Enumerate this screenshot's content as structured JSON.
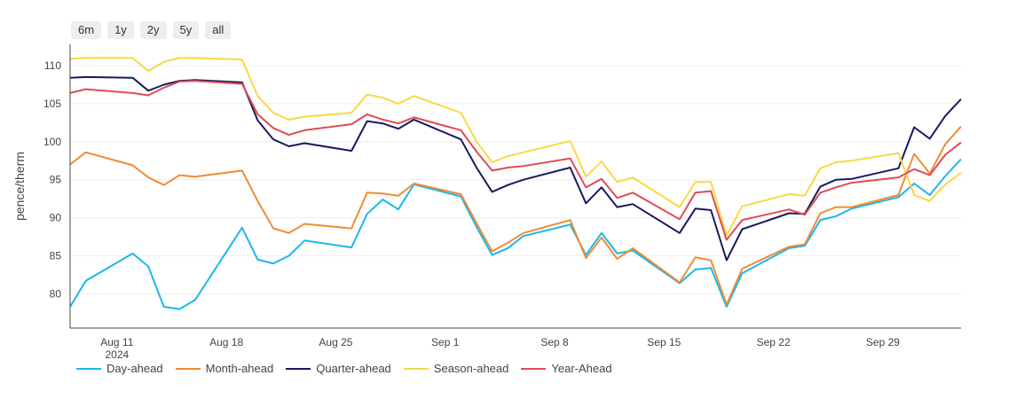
{
  "range_buttons": [
    "6m",
    "1y",
    "2y",
    "5y",
    "all"
  ],
  "chart_data": {
    "type": "line",
    "ylabel": "pence/therm",
    "xlabel": "",
    "ylim": [
      75.5,
      112.8
    ],
    "xlim": [
      "2024-08-08",
      "2024-10-04"
    ],
    "yticks": [
      80,
      85,
      90,
      95,
      100,
      105,
      110
    ],
    "xticks": [
      {
        "date": "2024-08-11",
        "label": "Aug 11",
        "sublabel": "2024"
      },
      {
        "date": "2024-08-18",
        "label": "Aug 18"
      },
      {
        "date": "2024-08-25",
        "label": "Aug 25"
      },
      {
        "date": "2024-09-01",
        "label": "Sep 1"
      },
      {
        "date": "2024-09-08",
        "label": "Sep 8"
      },
      {
        "date": "2024-09-15",
        "label": "Sep 15"
      },
      {
        "date": "2024-09-22",
        "label": "Sep 22"
      },
      {
        "date": "2024-09-29",
        "label": "Sep 29"
      }
    ],
    "grid": "horizontal",
    "legend_position": "bottom",
    "x": [
      "2024-08-08",
      "2024-08-09",
      "2024-08-12",
      "2024-08-13",
      "2024-08-14",
      "2024-08-15",
      "2024-08-16",
      "2024-08-19",
      "2024-08-20",
      "2024-08-21",
      "2024-08-22",
      "2024-08-23",
      "2024-08-26",
      "2024-08-27",
      "2024-08-28",
      "2024-08-29",
      "2024-08-30",
      "2024-09-02",
      "2024-09-03",
      "2024-09-04",
      "2024-09-05",
      "2024-09-06",
      "2024-09-09",
      "2024-09-10",
      "2024-09-11",
      "2024-09-12",
      "2024-09-13",
      "2024-09-16",
      "2024-09-17",
      "2024-09-18",
      "2024-09-19",
      "2024-09-20",
      "2024-09-23",
      "2024-09-24",
      "2024-09-25",
      "2024-09-26",
      "2024-09-27",
      "2024-09-30",
      "2024-10-01",
      "2024-10-02",
      "2024-10-03",
      "2024-10-04"
    ],
    "series": [
      {
        "name": "Day-ahead",
        "color": "#1ab8ec",
        "values": [
          78.3,
          81.7,
          85.3,
          83.6,
          78.3,
          78.0,
          79.2,
          88.7,
          84.5,
          84.0,
          85.0,
          87.0,
          86.1,
          90.5,
          92.4,
          91.1,
          94.4,
          92.8,
          88.8,
          85.1,
          86.0,
          87.6,
          89.1,
          85.1,
          88.0,
          85.3,
          85.7,
          81.4,
          83.2,
          83.4,
          78.3,
          82.7,
          86.0,
          86.3,
          89.7,
          90.2,
          91.2,
          92.7,
          94.5,
          93.0,
          95.5,
          97.7
        ]
      },
      {
        "name": "Month-ahead",
        "color": "#f08c33",
        "values": [
          97.0,
          98.6,
          96.9,
          95.3,
          94.3,
          95.6,
          95.4,
          96.2,
          92.2,
          88.6,
          88.0,
          89.2,
          88.6,
          93.3,
          93.2,
          92.9,
          94.5,
          93.1,
          89.3,
          85.6,
          86.7,
          88.0,
          89.7,
          84.7,
          87.4,
          84.6,
          86.0,
          81.5,
          84.8,
          84.4,
          78.6,
          83.3,
          86.2,
          86.5,
          90.6,
          91.4,
          91.4,
          93.0,
          98.4,
          95.8,
          99.7,
          102.0
        ]
      },
      {
        "name": "Quarter-ahead",
        "color": "#1a1a5e",
        "values": [
          108.4,
          108.5,
          108.4,
          106.7,
          107.5,
          108.0,
          108.1,
          107.8,
          102.8,
          100.3,
          99.4,
          99.8,
          98.8,
          102.7,
          102.4,
          101.7,
          102.9,
          100.3,
          96.6,
          93.4,
          94.3,
          95.0,
          96.6,
          91.9,
          94.0,
          91.4,
          91.8,
          88.0,
          91.2,
          91.0,
          84.4,
          88.5,
          90.6,
          90.5,
          94.1,
          95.0,
          95.1,
          96.5,
          101.9,
          100.4,
          103.4,
          105.6
        ]
      },
      {
        "name": "Season-ahead",
        "color": "#f7d944",
        "values": [
          110.9,
          111.0,
          111.0,
          109.3,
          110.5,
          111.0,
          111.0,
          110.8,
          106.0,
          103.8,
          102.9,
          103.3,
          103.8,
          106.2,
          105.8,
          105.0,
          106.0,
          103.8,
          100.0,
          97.3,
          98.1,
          98.6,
          100.1,
          95.4,
          97.4,
          94.7,
          95.3,
          91.4,
          94.7,
          94.7,
          87.7,
          91.5,
          93.1,
          92.9,
          96.5,
          97.3,
          97.5,
          98.5,
          93.0,
          92.2,
          94.4,
          95.9
        ]
      },
      {
        "name": "Year-Ahead",
        "color": "#e04b54",
        "values": [
          106.4,
          106.9,
          106.4,
          106.1,
          107.1,
          107.9,
          108.0,
          107.6,
          103.6,
          101.8,
          100.9,
          101.5,
          102.3,
          103.6,
          102.9,
          102.4,
          103.2,
          101.5,
          98.7,
          96.2,
          96.6,
          96.8,
          97.8,
          94.0,
          95.1,
          92.6,
          93.3,
          89.8,
          93.3,
          93.5,
          87.1,
          89.7,
          91.1,
          90.4,
          93.3,
          94.0,
          94.6,
          95.3,
          96.4,
          95.6,
          98.3,
          99.9
        ]
      }
    ]
  }
}
